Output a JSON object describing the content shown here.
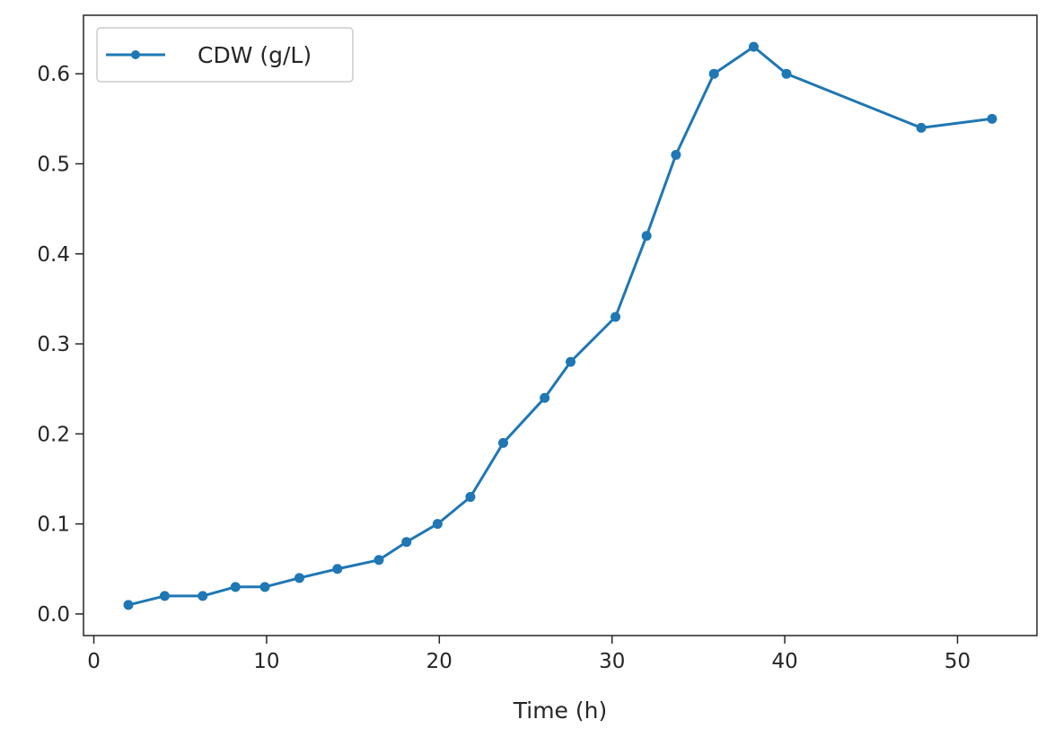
{
  "chart_data": {
    "type": "line",
    "xlabel": "Time (h)",
    "ylabel": "",
    "xlim": [
      -0.6,
      54.6
    ],
    "ylim": [
      -0.024,
      0.665
    ],
    "xticks": [
      0,
      10,
      20,
      30,
      40,
      50
    ],
    "xtick_labels": [
      "0",
      "10",
      "20",
      "30",
      "40",
      "50"
    ],
    "yticks": [
      0.0,
      0.1,
      0.2,
      0.3,
      0.4,
      0.5,
      0.6
    ],
    "ytick_labels": [
      "0.0",
      "0.1",
      "0.2",
      "0.3",
      "0.4",
      "0.5",
      "0.6"
    ],
    "grid": false,
    "legend_position": "top-left",
    "series": [
      {
        "name": "CDW (g/L)",
        "color": "#1f77b4",
        "marker": "dot",
        "x": [
          2,
          4.1,
          6.3,
          8.2,
          9.9,
          11.9,
          14.1,
          16.5,
          18.1,
          19.9,
          21.8,
          23.7,
          26.1,
          27.6,
          30.2,
          32,
          33.7,
          35.9,
          38.2,
          40.1,
          47.9,
          52
        ],
        "y": [
          0.01,
          0.02,
          0.02,
          0.03,
          0.03,
          0.04,
          0.05,
          0.06,
          0.08,
          0.1,
          0.13,
          0.19,
          0.24,
          0.28,
          0.33,
          0.42,
          0.51,
          0.6,
          0.63,
          0.6,
          0.54,
          0.55
        ]
      }
    ]
  }
}
